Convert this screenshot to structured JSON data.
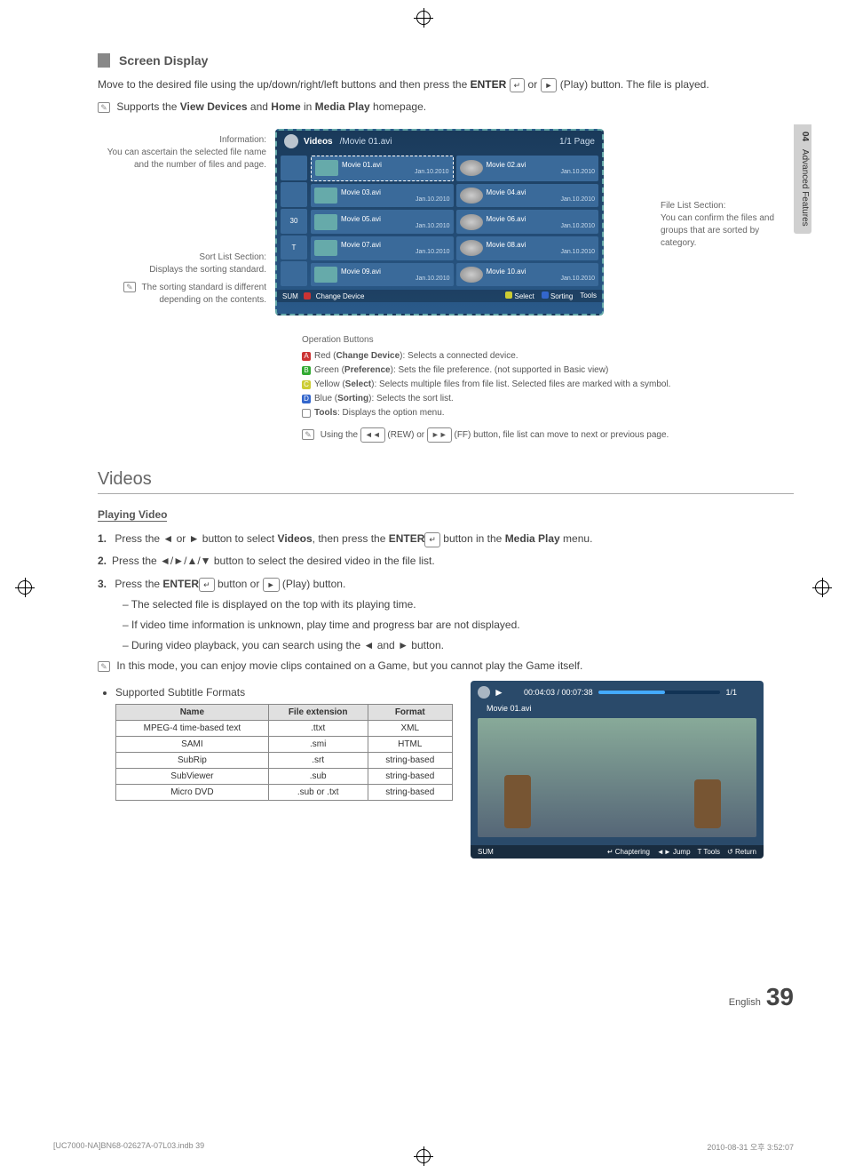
{
  "side_tab": {
    "chapter": "04",
    "title": "Advanced Features"
  },
  "section": {
    "title": "Screen Display"
  },
  "intro": {
    "text_prefix": "Move to the desired file using the up/down/right/left buttons and then press the ",
    "enter_label": "ENTER",
    "text_mid": " or ",
    "play_label": "(Play)",
    "text_suffix": " button. The file is played."
  },
  "support_note": {
    "prefix": "Supports the ",
    "b1": "View Devices",
    "mid": " and ",
    "b2": "Home",
    "mid2": " in ",
    "b3": "Media Play",
    "suffix": " homepage."
  },
  "diagram_labels": {
    "info_title": "Information:",
    "info_desc": "You can ascertain the selected file name and the number of files and page.",
    "sort_title": "Sort List Section:",
    "sort_desc": "Displays the sorting standard.",
    "sort_note": "The sorting standard is different depending on the contents.",
    "file_title": "File List Section:",
    "file_desc": "You can confirm the files and groups that are sorted by category."
  },
  "tv": {
    "title": "Videos",
    "path": "/Movie 01.avi",
    "page": "1/1 Page",
    "files": [
      {
        "name": "Movie 01.avi",
        "date": "Jan.10.2010",
        "sel": true
      },
      {
        "name": "Movie 02.avi",
        "date": "Jan.10.2010"
      },
      {
        "name": "Movie 03.avi",
        "date": "Jan.10.2010"
      },
      {
        "name": "Movie 04.avi",
        "date": "Jan.10.2010"
      },
      {
        "name": "Movie 05.avi",
        "date": "Jan.10.2010"
      },
      {
        "name": "Movie 06.avi",
        "date": "Jan.10.2010"
      },
      {
        "name": "Movie 07.avi",
        "date": "Jan.10.2010"
      },
      {
        "name": "Movie 08.avi",
        "date": "Jan.10.2010"
      },
      {
        "name": "Movie 09.avi",
        "date": "Jan.10.2010"
      },
      {
        "name": "Movie 10.avi",
        "date": "Jan.10.2010"
      }
    ],
    "footer": {
      "sum": "SUM",
      "change": "Change Device",
      "select": "Select",
      "sorting": "Sorting",
      "tools": "Tools"
    }
  },
  "op": {
    "header": "Operation Buttons",
    "a_label": "Red (",
    "a_bold": "Change Device",
    "a_rest": "): Selects a connected device.",
    "b_label": "Green (",
    "b_bold": "Preference",
    "b_rest": "): Sets the file preference. (not supported in Basic view)",
    "c_label": "Yellow (",
    "c_bold": "Select",
    "c_rest": "): Selects multiple files from file list. Selected files are marked with a symbol.",
    "d_label": "Blue (",
    "d_bold": "Sorting",
    "d_rest": "): Selects the sort list.",
    "t_bold": "Tools",
    "t_rest": ": Displays the option menu.",
    "rew_note_pre": "Using the ",
    "rew": "◄◄",
    "rew_name": "(REW)",
    "or": " or ",
    "ff": "►►",
    "ff_name": "(FF)",
    "rew_note_post": " button, file list can move to next or previous page."
  },
  "videos_h": "Videos",
  "playing_h": "Playing Video",
  "steps": {
    "s1_pre": "Press the ◄ or ► button to select ",
    "s1_b1": "Videos",
    "s1_mid": ", then press the ",
    "s1_b2": "ENTER",
    "s1_mid2": " button in the ",
    "s1_b3": "Media Play",
    "s1_end": " menu.",
    "s2": "Press the ◄/►/▲/▼ button to select the desired video in the file list.",
    "s3_pre": "Press the ",
    "s3_b1": "ENTER",
    "s3_mid": " button or ",
    "s3_play": "(Play)",
    "s3_end": " button.",
    "d1": "The selected file is displayed on the top with its playing time.",
    "d2": "If video time information is unknown, play time and progress bar are not displayed.",
    "d3": "During video playback, you can search using the ◄ and ► button."
  },
  "mode_note": "In this mode, you can enjoy movie clips contained on a Game, but you cannot play the Game itself.",
  "bullet1": "Supported Subtitle Formats",
  "table": {
    "cols": [
      "Name",
      "File extension",
      "Format"
    ],
    "rows": [
      [
        "MPEG-4 time-based text",
        ".ttxt",
        "XML"
      ],
      [
        "SAMI",
        ".smi",
        "HTML"
      ],
      [
        "SubRip",
        ".srt",
        "string-based"
      ],
      [
        "SubViewer",
        ".sub",
        "string-based"
      ],
      [
        "Micro DVD",
        ".sub or .txt",
        "string-based"
      ]
    ]
  },
  "player": {
    "time": "00:04:03 / 00:07:38",
    "page": "1/1",
    "fname": "Movie 01.avi",
    "sum": "SUM",
    "chaptering": "Chaptering",
    "jump": "Jump",
    "tools": "Tools",
    "return": "Return"
  },
  "page_foot": {
    "lang": "English",
    "num": "39"
  },
  "doc_foot": {
    "left": "[UC7000-NA]BN68-02627A-07L03.indb   39",
    "right": "2010-08-31   오후 3:52:07"
  }
}
